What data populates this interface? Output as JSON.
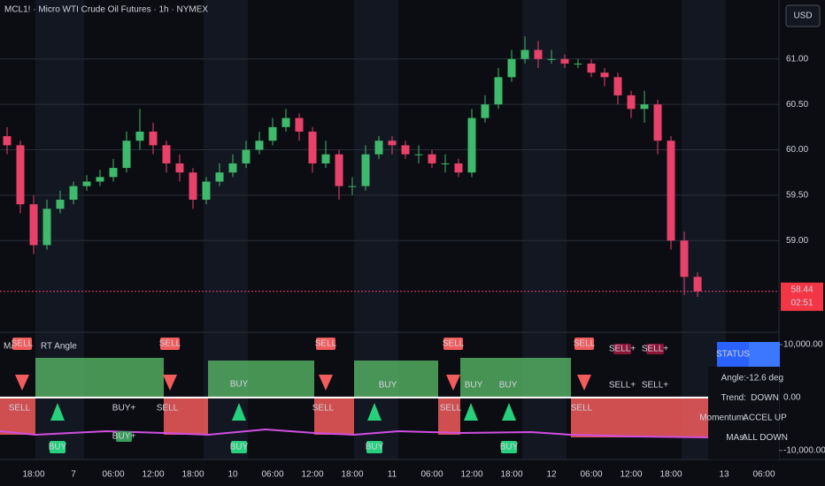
{
  "chart_data": {
    "type": "candlestick",
    "title": "MCL1! · Micro WTI Crude Oil Futures · 1h · NYMEX",
    "categories": [
      null,
      null,
      "18:00",
      null,
      null,
      "7",
      null,
      null,
      "06:00",
      null,
      null,
      "12:00",
      null,
      null,
      "18:00",
      null,
      null,
      "10",
      null,
      null,
      "06:00",
      null,
      null,
      "12:00",
      null,
      null,
      "18:00",
      null,
      null,
      "11",
      null,
      null,
      "06:00",
      null,
      null,
      "12:00",
      null,
      null,
      "18:00",
      null,
      null,
      "12",
      null,
      null,
      "06:00",
      null,
      null,
      "12:00",
      null,
      null,
      "18:00",
      null,
      null,
      null,
      "13",
      null,
      null,
      "06:00"
    ],
    "open": [
      60.15,
      60.05,
      59.4,
      58.95,
      59.35,
      59.45,
      59.6,
      59.65,
      59.7,
      59.8,
      60.1,
      60.2,
      60.05,
      59.85,
      59.75,
      59.45,
      59.65,
      59.75,
      59.85,
      60.0,
      60.1,
      60.25,
      60.35,
      60.2,
      59.85,
      59.95,
      59.6,
      59.6,
      59.95,
      60.1,
      60.05,
      59.95,
      59.95,
      59.85,
      59.85,
      59.75,
      60.35,
      60.5,
      60.8,
      61.0,
      61.1,
      61.0,
      61.0,
      60.95,
      60.95,
      60.85,
      60.8,
      60.6,
      60.45,
      60.5,
      60.1,
      59.0,
      58.6,
      null,
      null,
      null,
      null,
      null
    ],
    "high": [
      60.25,
      60.1,
      59.5,
      59.45,
      59.55,
      59.65,
      59.72,
      59.78,
      59.9,
      60.2,
      60.45,
      60.3,
      60.1,
      59.95,
      59.8,
      59.7,
      59.85,
      59.95,
      60.1,
      60.2,
      60.35,
      60.45,
      60.4,
      60.25,
      60.1,
      60.0,
      59.7,
      60.05,
      60.15,
      60.15,
      60.1,
      60.05,
      60.0,
      59.95,
      59.9,
      60.45,
      60.6,
      60.9,
      61.1,
      61.25,
      61.2,
      61.1,
      61.05,
      61.0,
      61.0,
      60.9,
      60.85,
      60.65,
      60.65,
      60.55,
      60.15,
      59.1,
      58.65,
      null,
      null,
      null,
      null,
      null
    ],
    "low": [
      59.95,
      59.3,
      58.85,
      58.9,
      59.3,
      59.4,
      59.55,
      59.6,
      59.65,
      59.75,
      60.0,
      59.95,
      59.75,
      59.65,
      59.35,
      59.4,
      59.6,
      59.7,
      59.8,
      59.95,
      60.05,
      60.2,
      60.1,
      59.75,
      59.8,
      59.45,
      59.5,
      59.55,
      59.9,
      59.95,
      59.9,
      59.85,
      59.8,
      59.75,
      59.7,
      59.7,
      60.3,
      60.45,
      60.75,
      60.95,
      60.9,
      60.95,
      60.9,
      60.9,
      60.8,
      60.7,
      60.5,
      60.35,
      60.3,
      59.95,
      58.9,
      58.4,
      58.38,
      null,
      null,
      null,
      null,
      null
    ],
    "close": [
      60.05,
      59.4,
      58.95,
      59.35,
      59.45,
      59.6,
      59.65,
      59.7,
      59.8,
      60.1,
      60.2,
      60.05,
      59.85,
      59.75,
      59.45,
      59.65,
      59.75,
      59.85,
      60.0,
      60.1,
      60.25,
      60.35,
      60.2,
      59.85,
      59.95,
      59.6,
      59.6,
      59.95,
      60.1,
      60.05,
      59.95,
      59.95,
      59.85,
      59.85,
      59.75,
      60.35,
      60.5,
      60.8,
      61.0,
      61.1,
      61.0,
      61.0,
      60.95,
      60.95,
      60.85,
      60.8,
      60.6,
      60.45,
      60.5,
      60.1,
      59.0,
      58.6,
      58.44,
      null,
      null,
      null,
      null,
      null
    ],
    "up_color": "#3fb96b",
    "down_color": "#e8416a",
    "ylim": [
      58.0,
      61.65
    ],
    "yticks": [
      {
        "value": 59,
        "label": "59.00"
      },
      {
        "value": 59.5,
        "label": "59.50"
      },
      {
        "value": 60,
        "label": "60.00"
      },
      {
        "value": 60.5,
        "label": "60.50"
      },
      {
        "value": 61,
        "label": "61.00"
      }
    ],
    "grid": true,
    "last_price": 58.44,
    "countdown": "02:51"
  },
  "toolbar": {
    "currency": "USD"
  },
  "indicator": {
    "title_parts": [
      "MA",
      "RT Angle"
    ],
    "ylim": [
      -11700,
      12000
    ],
    "yticks": [
      {
        "value": -10000,
        "label": "-10,000.00"
      },
      {
        "value": 0,
        "label": "0.00"
      },
      {
        "value": 10000,
        "label": "10,000.00"
      }
    ],
    "signals": {
      "sell": "SELL",
      "buy": "BUY",
      "buy_plus": "BUY+",
      "sell_plus": "SELL+"
    },
    "status": {
      "header": "STATUS",
      "rows": [
        [
          "Angle:",
          "-12.6 deg"
        ],
        [
          "Trend:",
          "DOWN"
        ],
        [
          "Momentum:",
          "ACCEL UP"
        ],
        [
          "MAs:",
          "ALL DOWN"
        ]
      ]
    }
  }
}
